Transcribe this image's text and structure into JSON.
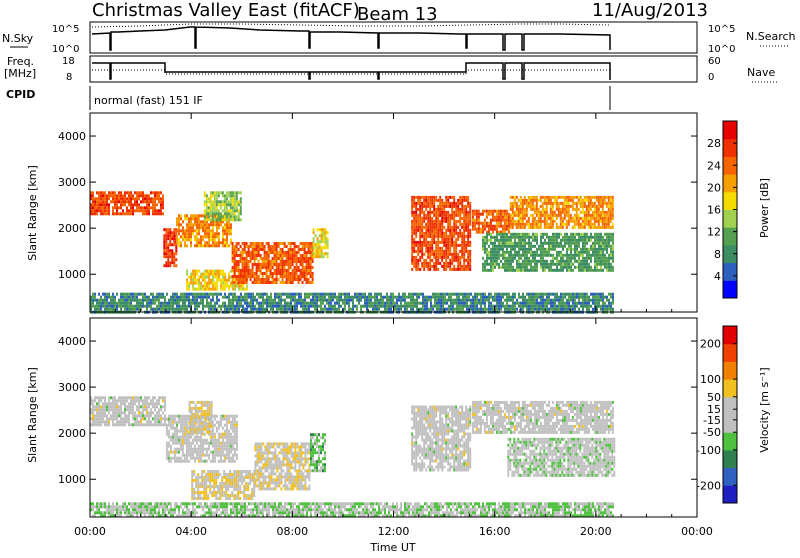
{
  "header": {
    "radar": "Christmas Valley East (fitACF)",
    "beam": "Beam 13",
    "date": "11/Aug/2013"
  },
  "strip_labels": {
    "nsky": "N.Sky",
    "nsearch": "N.Search",
    "freq": "Freq.",
    "freq_unit": "[MHz]",
    "nave": "Nave",
    "cpid": "CPID",
    "cpid_value": "normal (fast) 151 IF"
  },
  "strip_ticks": {
    "noise_left": [
      "10^5",
      "10^0"
    ],
    "noise_right": [
      "10^5",
      "10^0"
    ],
    "freq_left": [
      "18",
      "8"
    ],
    "freq_right": [
      "60",
      "0"
    ]
  },
  "colors": {
    "power": [
      "#0000ff",
      "#2d5fbf",
      "#3c8c64",
      "#55a050",
      "#a0d250",
      "#f5dc00",
      "#f5a000",
      "#f56400",
      "#f03000",
      "#e60000"
    ],
    "velocity": [
      "#2020c0",
      "#3060c0",
      "#308050",
      "#50c040",
      "#c0c0c0",
      "#c0c0c0",
      "#f0c020",
      "#f08000",
      "#f04000",
      "#e00000"
    ]
  },
  "chart_data": [
    {
      "type": "heatmap",
      "name": "power-panel",
      "ylabel": "Slant Range [km]",
      "x_ticks": [
        "00:00",
        "04:00",
        "08:00",
        "12:00",
        "16:00",
        "20:00",
        "00:00"
      ],
      "xlim": [
        0,
        24
      ],
      "y_ticks": [
        1000,
        2000,
        3000,
        4000
      ],
      "ylim": [
        180,
        4500
      ],
      "colorbar": {
        "label": "Power [dB]",
        "ticks": [
          4,
          8,
          12,
          16,
          20,
          24,
          28
        ],
        "range": [
          0,
          32
        ]
      },
      "regions": [
        {
          "t0": 0.0,
          "t1": 2.9,
          "r0": 2300,
          "r1": 2800,
          "value": 26
        },
        {
          "t0": 2.9,
          "t1": 3.4,
          "r0": 1200,
          "r1": 2000,
          "value": 27
        },
        {
          "t0": 3.4,
          "t1": 5.6,
          "r0": 1600,
          "r1": 2300,
          "value": 22
        },
        {
          "t0": 3.8,
          "t1": 6.2,
          "r0": 650,
          "r1": 1100,
          "value": 18
        },
        {
          "t0": 5.6,
          "t1": 8.8,
          "r0": 800,
          "r1": 1700,
          "value": 25
        },
        {
          "t0": 4.5,
          "t1": 6.0,
          "r0": 2200,
          "r1": 2800,
          "value": 14
        },
        {
          "t0": 8.8,
          "t1": 9.4,
          "r0": 1400,
          "r1": 2000,
          "value": 18
        },
        {
          "t0": 12.7,
          "t1": 15.0,
          "r0": 1100,
          "r1": 2700,
          "value": 26
        },
        {
          "t0": 15.1,
          "t1": 16.6,
          "r0": 1900,
          "r1": 2400,
          "value": 25
        },
        {
          "t0": 16.6,
          "t1": 20.7,
          "r0": 2000,
          "r1": 2700,
          "value": 22
        },
        {
          "t0": 15.5,
          "t1": 20.7,
          "r0": 1100,
          "r1": 1900,
          "value": 10
        },
        {
          "t0": 0.0,
          "t1": 20.7,
          "r0": 200,
          "r1": 600,
          "value": 8
        }
      ]
    },
    {
      "type": "heatmap",
      "name": "velocity-panel",
      "ylabel": "Slant Range [km]",
      "xlabel": "Time UT",
      "x_ticks": [
        "00:00",
        "04:00",
        "08:00",
        "12:00",
        "16:00",
        "20:00",
        "00:00"
      ],
      "xlim": [
        0,
        24
      ],
      "y_ticks": [
        1000,
        2000,
        3000,
        4000
      ],
      "ylim": [
        180,
        4500
      ],
      "colorbar": {
        "label": "Velocity [m s⁻¹]",
        "ticks": [
          -200,
          -100,
          -50,
          -15,
          15,
          50,
          100,
          200
        ],
        "range": [
          -250,
          250
        ]
      },
      "regions": [
        {
          "t0": 0.0,
          "t1": 3.0,
          "r0": 2200,
          "r1": 2800,
          "value": 0
        },
        {
          "t0": 3.0,
          "t1": 5.8,
          "r0": 1400,
          "r1": 2400,
          "value": 0
        },
        {
          "t0": 3.9,
          "t1": 4.8,
          "r0": 2000,
          "r1": 2700,
          "value": 40
        },
        {
          "t0": 4.0,
          "t1": 6.5,
          "r0": 600,
          "r1": 1200,
          "value": 35
        },
        {
          "t0": 6.5,
          "t1": 8.7,
          "r0": 800,
          "r1": 1800,
          "value": 30
        },
        {
          "t0": 8.7,
          "t1": 9.3,
          "r0": 1200,
          "r1": 2000,
          "value": -60
        },
        {
          "t0": 12.7,
          "t1": 15.0,
          "r0": 1200,
          "r1": 2600,
          "value": 0
        },
        {
          "t0": 15.1,
          "t1": 20.7,
          "r0": 2000,
          "r1": 2700,
          "value": 0
        },
        {
          "t0": 16.5,
          "t1": 20.7,
          "r0": 1100,
          "r1": 1900,
          "value": -20
        },
        {
          "t0": 0.0,
          "t1": 20.7,
          "r0": 200,
          "r1": 500,
          "value": -40
        }
      ]
    }
  ]
}
